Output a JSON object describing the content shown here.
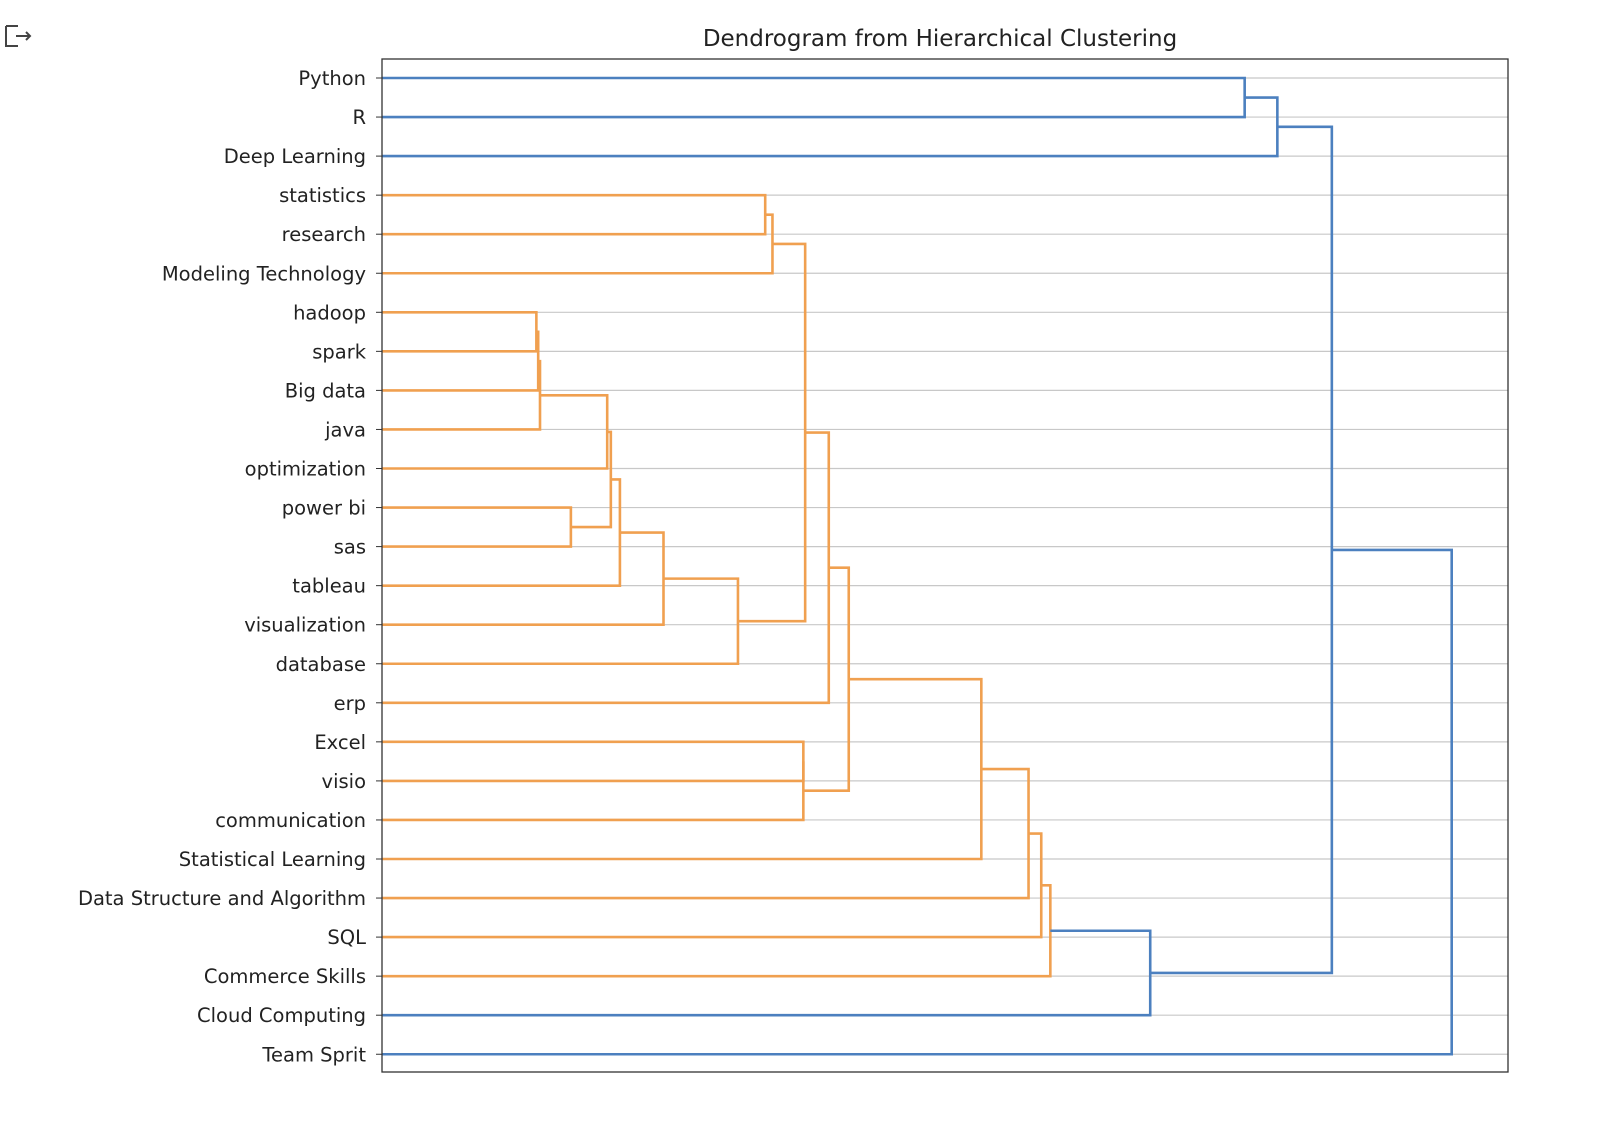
{
  "output_icon": "output-arrow-icon",
  "chart_data": {
    "type": "dendrogram",
    "title": "Dendrogram from Hierarchical Clustering",
    "orientation": "left",
    "grid": true,
    "colors": {
      "primary": "#4c80bf",
      "cluster": "#f0a050",
      "grid": "#c8c8c8",
      "frame": "#333333"
    },
    "xlim": [
      0,
      6.2
    ],
    "leaves": [
      "Python",
      "R",
      "Deep Learning",
      "statistics",
      "research",
      "Modeling Technology",
      "hadoop",
      "spark",
      "Big data",
      "java",
      "optimization",
      "power bi",
      "sas",
      "tableau",
      "visualization",
      "database",
      "erp",
      "Excel",
      "visio",
      "communication",
      "Statistical Learning",
      "Data Structure and Algorithm",
      "SQL",
      "Commerce Skills",
      "Cloud Computing",
      "Team Sprit"
    ],
    "merges": [
      {
        "left": "L:Python",
        "right": "L:R",
        "height": 4.75,
        "color": "primary"
      },
      {
        "left": "M:0",
        "right": "L:Deep Learning",
        "height": 4.93,
        "color": "primary"
      },
      {
        "left": "L:statistics",
        "right": "L:research",
        "height": 2.11,
        "color": "cluster"
      },
      {
        "left": "M:2",
        "right": "L:Modeling Technology",
        "height": 2.15,
        "color": "cluster"
      },
      {
        "left": "L:hadoop",
        "right": "L:spark",
        "height": 0.85,
        "color": "cluster"
      },
      {
        "left": "M:4",
        "right": "L:Big data",
        "height": 0.86,
        "color": "cluster"
      },
      {
        "left": "M:5",
        "right": "L:java",
        "height": 0.87,
        "color": "cluster"
      },
      {
        "left": "M:6",
        "right": "L:optimization",
        "height": 1.24,
        "color": "cluster"
      },
      {
        "left": "L:power bi",
        "right": "L:sas",
        "height": 1.04,
        "color": "cluster"
      },
      {
        "left": "M:7",
        "right": "M:8",
        "height": 1.26,
        "color": "cluster"
      },
      {
        "left": "M:9",
        "right": "L:tableau",
        "height": 1.31,
        "color": "cluster"
      },
      {
        "left": "M:10",
        "right": "L:visualization",
        "height": 1.55,
        "color": "cluster"
      },
      {
        "left": "M:11",
        "right": "L:database",
        "height": 1.96,
        "color": "cluster"
      },
      {
        "left": "M:3",
        "right": "M:12",
        "height": 2.33,
        "color": "cluster"
      },
      {
        "left": "M:13",
        "right": "L:erp",
        "height": 2.46,
        "color": "cluster"
      },
      {
        "left": "L:Excel",
        "right": "L:visio",
        "height": 2.32,
        "color": "cluster"
      },
      {
        "left": "M:15",
        "right": "L:communication",
        "height": 2.32,
        "color": "cluster"
      },
      {
        "left": "M:14",
        "right": "M:16",
        "height": 2.57,
        "color": "cluster"
      },
      {
        "left": "M:17",
        "right": "L:Statistical Learning",
        "height": 3.3,
        "color": "cluster"
      },
      {
        "left": "M:18",
        "right": "L:Data Structure and Algorithm",
        "height": 3.56,
        "color": "cluster"
      },
      {
        "left": "M:19",
        "right": "L:SQL",
        "height": 3.63,
        "color": "cluster"
      },
      {
        "left": "M:20",
        "right": "L:Commerce Skills",
        "height": 3.68,
        "color": "cluster"
      },
      {
        "left": "M:21",
        "right": "L:Cloud Computing",
        "height": 4.23,
        "color": "primary"
      },
      {
        "left": "M:1",
        "right": "M:22",
        "height": 5.23,
        "color": "primary"
      },
      {
        "left": "M:23",
        "right": "L:Team Sprit",
        "height": 5.89,
        "color": "primary"
      }
    ]
  }
}
